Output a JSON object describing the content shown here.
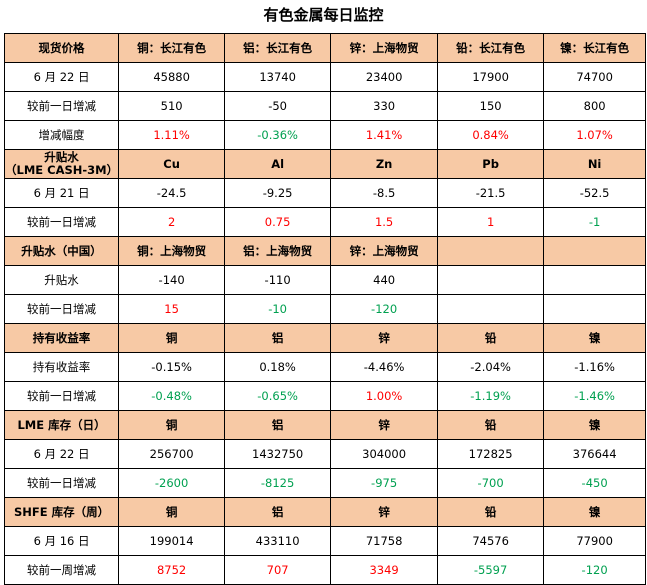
{
  "title": "有色金属每日监控",
  "spot": {
    "header": [
      "现货价格",
      "铜：长江有色",
      "铝：长江有色",
      "锌：上海物贸",
      "铅：长江有色",
      "镍：长江有色"
    ],
    "rows": [
      [
        "6 月 22 日",
        "45880",
        "13740",
        "23400",
        "17900",
        "74700"
      ],
      [
        "较前一日增减",
        "510",
        "-50",
        "330",
        "150",
        "800"
      ],
      [
        "增减幅度",
        "1.11%",
        "-0.36%",
        "1.41%",
        "0.84%",
        "1.07%"
      ]
    ]
  },
  "lme_spread": {
    "header_line1": "升贴水",
    "header_line2": "（LME CASH-3M）",
    "header": [
      "Cu",
      "Al",
      "Zn",
      "Pb",
      "Ni"
    ],
    "rows": [
      [
        "6 月 21 日",
        "-24.5",
        "-9.25",
        "-8.5",
        "-21.5",
        "-52.5"
      ],
      [
        "较前一日增减",
        "2",
        "0.75",
        "1.5",
        "1",
        "-1"
      ]
    ]
  },
  "cn_spread": {
    "header": [
      "升贴水（中国）",
      "铜：上海物贸",
      "铝：上海物贸",
      "锌：上海物贸",
      "",
      ""
    ],
    "rows": [
      [
        "升贴水",
        "-140",
        "-110",
        "440",
        "",
        ""
      ],
      [
        "较前一日增减",
        "15",
        "-10",
        "-120",
        "",
        ""
      ]
    ]
  },
  "yield": {
    "header": [
      "持有收益率",
      "铜",
      "铝",
      "锌",
      "铅",
      "镍"
    ],
    "rows": [
      [
        "持有收益率",
        "-0.15%",
        "0.18%",
        "-4.46%",
        "-2.04%",
        "-1.16%"
      ],
      [
        "较前一日增减",
        "-0.48%",
        "-0.65%",
        "1.00%",
        "-1.19%",
        "-1.46%"
      ]
    ]
  },
  "lme_stock": {
    "header": [
      "LME 库存（日）",
      "铜",
      "铝",
      "锌",
      "铅",
      "镍"
    ],
    "rows": [
      [
        "6 月 22 日",
        "256700",
        "1432750",
        "304000",
        "172825",
        "376644"
      ],
      [
        "较前一日增减",
        "-2600",
        "-8125",
        "-975",
        "-700",
        "-450"
      ]
    ]
  },
  "shfe_stock": {
    "header": [
      "SHFE 库存（周）",
      "铜",
      "铝",
      "锌",
      "铅",
      "镍"
    ],
    "rows": [
      [
        "6 月 16 日",
        "199014",
        "433110",
        "71758",
        "74576",
        "77900"
      ],
      [
        "较前一周增减",
        "8752",
        "707",
        "3349",
        "-5597",
        "-120"
      ]
    ]
  },
  "colors": {
    "header_bg": "#f7c9a5",
    "positive": "#ff0000",
    "negative": "#00a050"
  }
}
